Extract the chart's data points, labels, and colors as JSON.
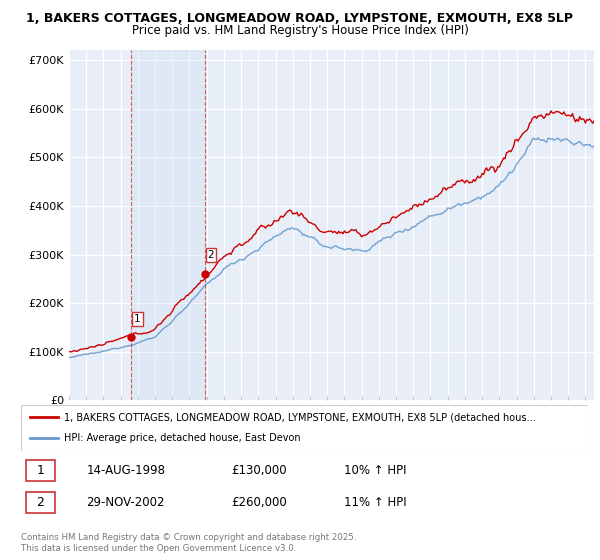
{
  "title_line1": "1, BAKERS COTTAGES, LONGMEADOW ROAD, LYMPSTONE, EXMOUTH, EX8 5LP",
  "title_line2": "Price paid vs. HM Land Registry's House Price Index (HPI)",
  "ylim": [
    0,
    720000
  ],
  "xlim_start": 1995.0,
  "xlim_end": 2025.5,
  "yticks": [
    0,
    100000,
    200000,
    300000,
    400000,
    500000,
    600000,
    700000
  ],
  "ytick_labels": [
    "£0",
    "£100K",
    "£200K",
    "£300K",
    "£400K",
    "£500K",
    "£600K",
    "£700K"
  ],
  "background_color": "#ffffff",
  "plot_bg_color": "#e8eef8",
  "grid_color": "#ffffff",
  "legend_entries": [
    "1, BAKERS COTTAGES, LONGMEADOW ROAD, LYMPSTONE, EXMOUTH, EX8 5LP (detached hous…",
    "HPI: Average price, detached house, East Devon"
  ],
  "legend_colors": [
    "#cc0000",
    "#6699cc"
  ],
  "purchase_marker1": {
    "year": 1998.62,
    "price": 130000,
    "label": "1"
  },
  "purchase_marker2": {
    "year": 2002.91,
    "price": 260000,
    "label": "2"
  },
  "vline1_year": 1998.62,
  "vline2_year": 2002.91,
  "table_data": [
    {
      "num": "1",
      "date": "14-AUG-1998",
      "price": "£130,000",
      "hpi": "10% ↑ HPI"
    },
    {
      "num": "2",
      "date": "29-NOV-2002",
      "price": "£260,000",
      "hpi": "11% ↑ HPI"
    }
  ],
  "footer": "Contains HM Land Registry data © Crown copyright and database right 2025.\nThis data is licensed under the Open Government Licence v3.0.",
  "property_line_color": "#cc0000",
  "hpi_line_color": "#6699cc",
  "title_fontsize": 9.0,
  "axis_fontsize": 8.0
}
